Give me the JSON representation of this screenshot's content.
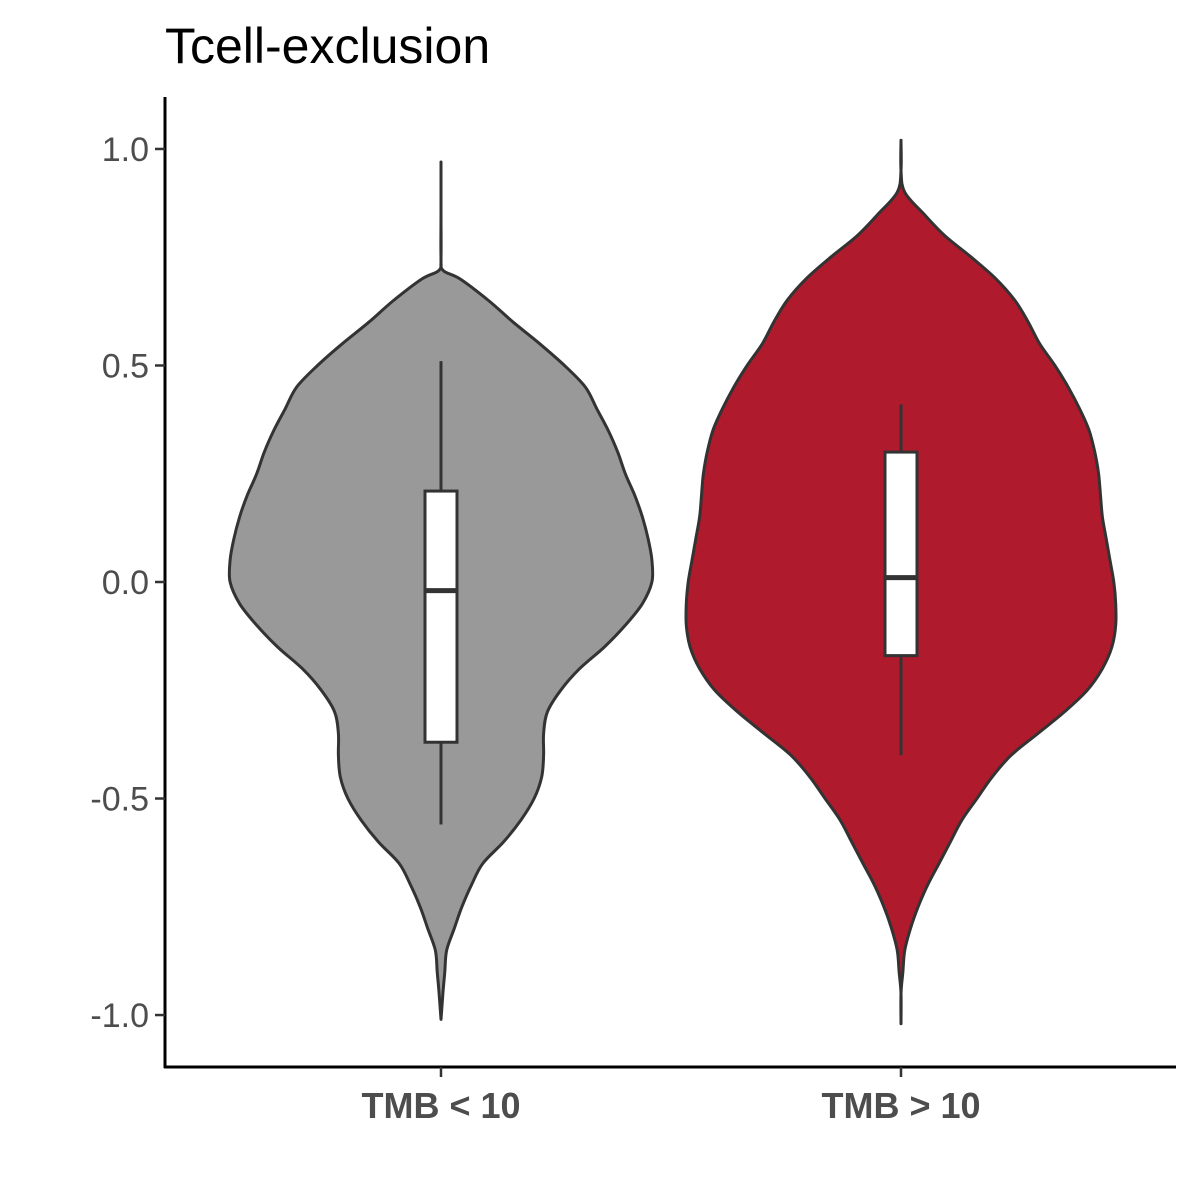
{
  "chart_data": {
    "type": "violin",
    "title": "Tcell-exclusion",
    "xlabel": "",
    "ylabel": "",
    "ylim": [
      -1.12,
      1.12
    ],
    "yticks": [
      "1.0",
      "0.5",
      "0.0",
      "-0.5",
      "-1.0"
    ],
    "ytick_values": [
      1.0,
      0.5,
      0.0,
      -0.5,
      -1.0
    ],
    "grid": false,
    "legend": "none",
    "categories": [
      "TMB < 10",
      "TMB > 10"
    ],
    "series": [
      {
        "category": "TMB < 10",
        "color": "#999999",
        "violin_range": [
          -1.01,
          0.97
        ],
        "density": [
          [
            0.97,
            0.0
          ],
          [
            0.85,
            0.0
          ],
          [
            0.75,
            0.0
          ],
          [
            0.72,
            0.01
          ],
          [
            0.7,
            0.1
          ],
          [
            0.65,
            0.25
          ],
          [
            0.6,
            0.38
          ],
          [
            0.55,
            0.52
          ],
          [
            0.5,
            0.65
          ],
          [
            0.45,
            0.76
          ],
          [
            0.4,
            0.82
          ],
          [
            0.35,
            0.88
          ],
          [
            0.3,
            0.93
          ],
          [
            0.25,
            0.97
          ],
          [
            0.2,
            1.02
          ],
          [
            0.15,
            1.06
          ],
          [
            0.1,
            1.09
          ],
          [
            0.05,
            1.11
          ],
          [
            0.0,
            1.11
          ],
          [
            -0.05,
            1.06
          ],
          [
            -0.1,
            0.97
          ],
          [
            -0.15,
            0.86
          ],
          [
            -0.2,
            0.73
          ],
          [
            -0.25,
            0.63
          ],
          [
            -0.3,
            0.56
          ],
          [
            -0.35,
            0.54
          ],
          [
            -0.4,
            0.54
          ],
          [
            -0.45,
            0.53
          ],
          [
            -0.5,
            0.49
          ],
          [
            -0.55,
            0.42
          ],
          [
            -0.6,
            0.33
          ],
          [
            -0.65,
            0.22
          ],
          [
            -0.7,
            0.16
          ],
          [
            -0.75,
            0.11
          ],
          [
            -0.8,
            0.07
          ],
          [
            -0.85,
            0.03
          ],
          [
            -0.9,
            0.02
          ],
          [
            -0.95,
            0.01
          ],
          [
            -1.01,
            0.0
          ]
        ],
        "box": {
          "whisker_low": -0.56,
          "q1": -0.37,
          "median": -0.02,
          "q3": 0.21,
          "whisker_high": 0.51
        }
      },
      {
        "category": "TMB > 10",
        "color": "#af1a2d",
        "violin_range": [
          -1.02,
          1.02
        ],
        "density": [
          [
            1.02,
            0.0
          ],
          [
            0.95,
            0.0
          ],
          [
            0.9,
            0.02
          ],
          [
            0.85,
            0.12
          ],
          [
            0.8,
            0.23
          ],
          [
            0.75,
            0.37
          ],
          [
            0.7,
            0.5
          ],
          [
            0.65,
            0.6
          ],
          [
            0.6,
            0.67
          ],
          [
            0.55,
            0.73
          ],
          [
            0.5,
            0.81
          ],
          [
            0.45,
            0.88
          ],
          [
            0.4,
            0.94
          ],
          [
            0.35,
            0.99
          ],
          [
            0.3,
            1.02
          ],
          [
            0.25,
            1.04
          ],
          [
            0.2,
            1.05
          ],
          [
            0.15,
            1.06
          ],
          [
            0.1,
            1.08
          ],
          [
            0.05,
            1.1
          ],
          [
            0.0,
            1.12
          ],
          [
            -0.05,
            1.13
          ],
          [
            -0.1,
            1.13
          ],
          [
            -0.15,
            1.11
          ],
          [
            -0.2,
            1.06
          ],
          [
            -0.25,
            0.98
          ],
          [
            -0.3,
            0.86
          ],
          [
            -0.35,
            0.72
          ],
          [
            -0.4,
            0.58
          ],
          [
            -0.45,
            0.48
          ],
          [
            -0.5,
            0.4
          ],
          [
            -0.55,
            0.32
          ],
          [
            -0.6,
            0.26
          ],
          [
            -0.65,
            0.2
          ],
          [
            -0.7,
            0.14
          ],
          [
            -0.75,
            0.09
          ],
          [
            -0.8,
            0.05
          ],
          [
            -0.85,
            0.02
          ],
          [
            -0.9,
            0.01
          ],
          [
            -0.95,
            0.0
          ],
          [
            -1.02,
            0.0
          ]
        ],
        "box": {
          "whisker_low": -0.4,
          "q1": -0.17,
          "median": 0.01,
          "q3": 0.3,
          "whisker_high": 0.41
        }
      }
    ]
  }
}
